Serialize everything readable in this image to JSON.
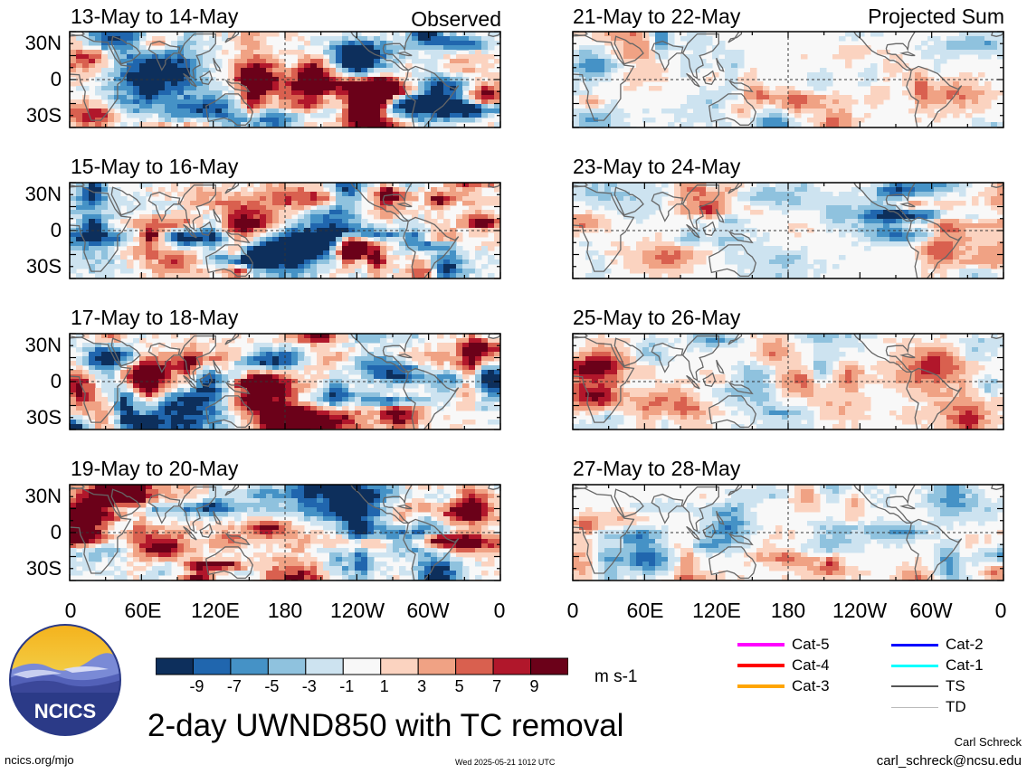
{
  "panels": {
    "observed": [
      {
        "title": "13-May to 14-May",
        "tag": "Observed"
      },
      {
        "title": "15-May to 16-May",
        "tag": ""
      },
      {
        "title": "17-May to 18-May",
        "tag": ""
      },
      {
        "title": "19-May to 20-May",
        "tag": ""
      }
    ],
    "projected": [
      {
        "title": "21-May to 22-May",
        "tag": "Projected Sum"
      },
      {
        "title": "23-May to 24-May",
        "tag": ""
      },
      {
        "title": "25-May to 26-May",
        "tag": ""
      },
      {
        "title": "27-May to 28-May",
        "tag": ""
      }
    ]
  },
  "lat_labels": [
    "30N",
    "0",
    "30S"
  ],
  "lon_labels": [
    "0",
    "60E",
    "120E",
    "180",
    "120W",
    "60W",
    "0"
  ],
  "colorbar": {
    "unit": "m s-1",
    "ticks": [
      "-9",
      "-7",
      "-5",
      "-3",
      "-1",
      "1",
      "3",
      "5",
      "7",
      "9"
    ],
    "colors": [
      "#0d2f5c",
      "#2066ae",
      "#4592c6",
      "#8fc2de",
      "#cde3f0",
      "#f8f8f8",
      "#fbd3c0",
      "#f0a284",
      "#d9604f",
      "#b1172b",
      "#6b0119"
    ]
  },
  "tc_legend": [
    {
      "label": "Cat-5",
      "color": "#ff00ff"
    },
    {
      "label": "Cat-4",
      "color": "#ff0000"
    },
    {
      "label": "Cat-3",
      "color": "#ffa500"
    },
    {
      "label": "Cat-2",
      "color": "#0000ff"
    },
    {
      "label": "Cat-1",
      "color": "#00ffff"
    },
    {
      "label": "TS",
      "color": "#555555"
    },
    {
      "label": "TD",
      "color": "#bbbbbb"
    }
  ],
  "logo_text": "NCICS",
  "main_title": "2-day UWND850 with TC removal",
  "footer": {
    "site": "ncics.org/mjo",
    "timestamp": "Wed 2025-05-21 1012 UTC",
    "author": "Carl Schreck",
    "email": "carl_schreck@ncsu.edu"
  }
}
